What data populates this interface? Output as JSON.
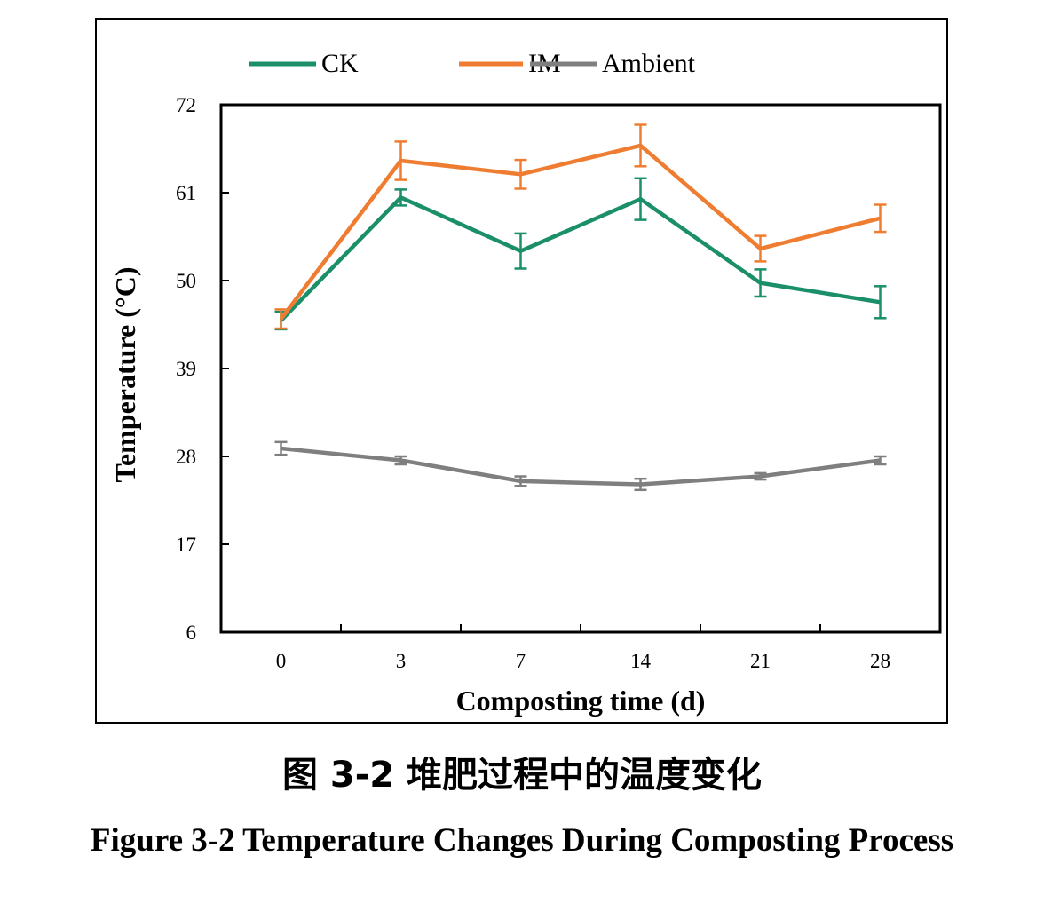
{
  "chart_data": {
    "type": "line",
    "xlabel": "Composting time (d)",
    "ylabel": "Temperature (°C)",
    "categories": [
      "0",
      "3",
      "7",
      "14",
      "21",
      "28"
    ],
    "yticks": [
      "6",
      "17",
      "28",
      "39",
      "50",
      "61",
      "72"
    ],
    "ylim": [
      6,
      72
    ],
    "grid": false,
    "legend_position": "top",
    "series": [
      {
        "name": "CK",
        "color": "#1a8f6a",
        "values": [
          45.0,
          60.4,
          53.7,
          60.2,
          49.7,
          47.3
        ],
        "errors": [
          1.1,
          1.0,
          2.2,
          2.6,
          1.7,
          2.0
        ]
      },
      {
        "name": "IM",
        "color": "#ef7d31",
        "values": [
          45.2,
          65.0,
          63.3,
          66.9,
          54.0,
          57.8
        ],
        "errors": [
          1.2,
          2.4,
          1.8,
          2.6,
          1.6,
          1.7
        ]
      },
      {
        "name": "Ambient",
        "color": "#7f7f7f",
        "values": [
          29.0,
          27.5,
          24.9,
          24.5,
          25.5,
          27.5
        ],
        "errors": [
          0.8,
          0.5,
          0.6,
          0.7,
          0.4,
          0.5
        ]
      }
    ]
  },
  "caption": {
    "cn": "图 3-2  堆肥过程中的温度变化",
    "en": "Figure 3-2 Temperature Changes During Composting Process"
  }
}
